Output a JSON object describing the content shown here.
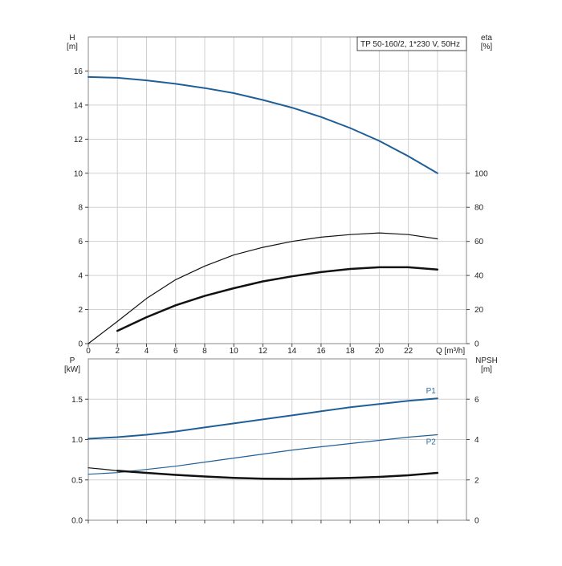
{
  "colors": {
    "blue": "#1f5f97",
    "black": "#111111",
    "grid": "#d0d0d0",
    "frame": "#888888",
    "axis": "#444444",
    "label_blue": "#2e6da4"
  },
  "chart_data": [
    {
      "type": "line",
      "title": "TP 50-160/2, 1*230 V, 50Hz",
      "xlabel": "Q [m³/h]",
      "x_ticks": [
        "0",
        "2",
        "4",
        "6",
        "8",
        "10",
        "12",
        "14",
        "16",
        "18",
        "20",
        "22"
      ],
      "xlim": [
        0,
        26
      ],
      "left_axis": {
        "label_lines": [
          "H",
          "[m]"
        ],
        "ticks": [
          "0",
          "2",
          "4",
          "6",
          "8",
          "10",
          "12",
          "14",
          "16"
        ],
        "ylim": [
          0,
          18
        ]
      },
      "right_axis": {
        "label_lines": [
          "eta",
          "[%]"
        ],
        "ticks": [
          "0",
          "20",
          "40",
          "60",
          "80",
          "100"
        ],
        "ylim": [
          0,
          180
        ]
      },
      "grid": true,
      "series": [
        {
          "axis": "left",
          "color": "blue",
          "width": 2,
          "x": [
            0,
            2,
            4,
            6,
            8,
            10,
            12,
            14,
            16,
            18,
            20,
            22,
            24
          ],
          "y": [
            15.65,
            15.6,
            15.45,
            15.25,
            15.0,
            14.7,
            14.3,
            13.85,
            13.3,
            12.65,
            11.9,
            11.0,
            10.0
          ]
        },
        {
          "axis": "right",
          "color": "black",
          "width": 1.2,
          "x": [
            0,
            2,
            4,
            6,
            8,
            10,
            12,
            14,
            16,
            18,
            20,
            22,
            24
          ],
          "y": [
            0,
            13,
            26.5,
            37.5,
            45.5,
            52,
            56.5,
            60,
            62.5,
            64,
            65,
            64,
            61.5
          ]
        },
        {
          "axis": "right",
          "color": "black",
          "width": 2.5,
          "x": [
            2,
            4,
            6,
            8,
            10,
            12,
            14,
            16,
            18,
            20,
            22,
            24
          ],
          "y": [
            7.5,
            15.5,
            22.5,
            28,
            32.5,
            36.5,
            39.5,
            42,
            43.8,
            44.8,
            44.8,
            43.5
          ]
        }
      ]
    },
    {
      "type": "line",
      "title": "",
      "xlabel": "",
      "x_ticks": [],
      "xlim": [
        0,
        26
      ],
      "left_axis": {
        "label_lines": [
          "P",
          "[kW]"
        ],
        "ticks": [
          "0.0",
          "0.5",
          "1.0",
          "1.5"
        ],
        "ylim": [
          0,
          2.0
        ]
      },
      "right_axis": {
        "label_lines": [
          "NPSH",
          "[m]"
        ],
        "ticks": [
          "0",
          "2",
          "4",
          "6"
        ],
        "ylim": [
          0,
          8
        ]
      },
      "grid": true,
      "series": [
        {
          "name": "P1",
          "axis": "left",
          "color": "blue",
          "width": 2,
          "x": [
            0,
            2,
            4,
            6,
            8,
            10,
            12,
            14,
            16,
            18,
            20,
            22,
            24
          ],
          "y": [
            1.01,
            1.03,
            1.06,
            1.1,
            1.15,
            1.2,
            1.25,
            1.3,
            1.35,
            1.4,
            1.44,
            1.48,
            1.51
          ]
        },
        {
          "name": "P2",
          "axis": "left",
          "color": "blue",
          "width": 1.2,
          "x": [
            0,
            2,
            4,
            6,
            8,
            10,
            12,
            14,
            16,
            18,
            20,
            22,
            24
          ],
          "y": [
            0.57,
            0.59,
            0.63,
            0.67,
            0.72,
            0.77,
            0.82,
            0.87,
            0.91,
            0.95,
            0.99,
            1.03,
            1.06
          ]
        },
        {
          "axis": "right",
          "color": "black",
          "width": 1.2,
          "x": [
            0,
            1,
            2
          ],
          "y": [
            2.6,
            2.53,
            2.45
          ]
        },
        {
          "axis": "right",
          "color": "black",
          "width": 2.5,
          "x": [
            2,
            4,
            6,
            8,
            10,
            12,
            14,
            16,
            18,
            20,
            22,
            24
          ],
          "y": [
            2.45,
            2.35,
            2.25,
            2.17,
            2.1,
            2.06,
            2.05,
            2.07,
            2.1,
            2.15,
            2.23,
            2.35
          ]
        }
      ]
    }
  ]
}
